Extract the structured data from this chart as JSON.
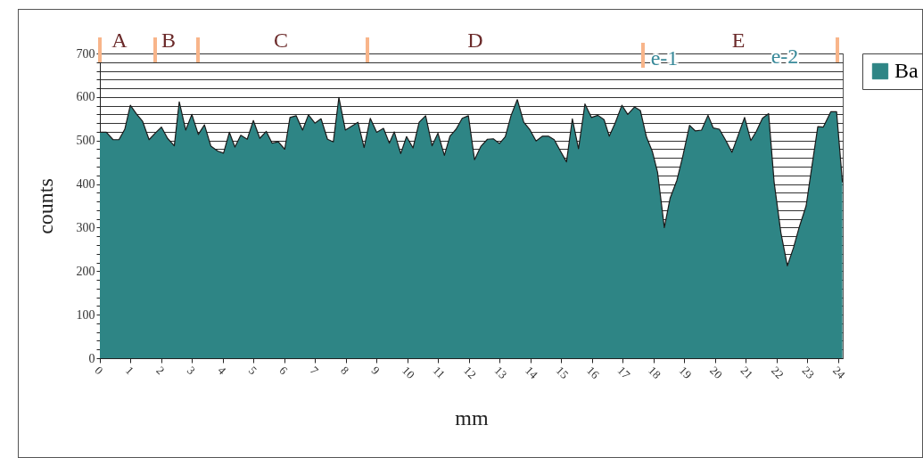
{
  "chart_data": {
    "type": "area",
    "xlabel": "mm",
    "ylabel": "counts",
    "series": [
      {
        "name": "Ba",
        "color": "#2e8585",
        "x": [
          0,
          0.21,
          0.43,
          0.62,
          0.81,
          0.99,
          1.2,
          1.39,
          1.6,
          1.8,
          2.0,
          2.2,
          2.42,
          2.58,
          2.79,
          2.99,
          3.2,
          3.4,
          3.61,
          3.83,
          4.02,
          4.21,
          4.39,
          4.58,
          4.79,
          4.99,
          5.2,
          5.41,
          5.6,
          5.8,
          6.01,
          6.18,
          6.38,
          6.59,
          6.78,
          6.99,
          7.19,
          7.4,
          7.59,
          7.77,
          7.98,
          8.39,
          8.59,
          8.79,
          9.0,
          9.22,
          9.41,
          9.57,
          9.78,
          9.97,
          10.18,
          10.38,
          10.59,
          10.8,
          10.99,
          11.2,
          11.38,
          11.58,
          11.78,
          11.98,
          12.18,
          12.39,
          12.6,
          12.79,
          12.99,
          13.18,
          13.37,
          13.57,
          13.78,
          13.97,
          14.18,
          14.39,
          14.58,
          14.77,
          14.98,
          15.17,
          15.36,
          15.56,
          15.77,
          15.98,
          16.19,
          16.39,
          16.56,
          16.75,
          16.97,
          17.16,
          17.38,
          17.57,
          17.77,
          17.96,
          18.13,
          18.35,
          18.54,
          18.76,
          18.96,
          19.17,
          19.36,
          19.56,
          19.77,
          19.94,
          20.14,
          20.35,
          20.55,
          20.76,
          20.96,
          21.16,
          21.34,
          21.54,
          21.74,
          21.92,
          22.14,
          22.35,
          22.55,
          22.74,
          22.96,
          23.15,
          23.34,
          23.52,
          23.76,
          23.95,
          24.14
        ],
        "values": [
          519,
          519,
          502,
          502,
          526,
          581,
          560,
          544,
          502,
          517,
          531,
          505,
          488,
          589,
          524,
          560,
          514,
          536,
          487,
          476,
          471,
          519,
          485,
          512,
          503,
          546,
          505,
          521,
          494,
          497,
          480,
          553,
          557,
          524,
          559,
          540,
          550,
          503,
          497,
          599,
          524,
          542,
          484,
          551,
          519,
          528,
          494,
          520,
          470,
          509,
          483,
          542,
          557,
          488,
          517,
          466,
          510,
          526,
          551,
          557,
          456,
          487,
          503,
          504,
          493,
          509,
          558,
          594,
          542,
          526,
          499,
          510,
          510,
          502,
          475,
          451,
          550,
          481,
          584,
          553,
          558,
          548,
          510,
          540,
          581,
          560,
          577,
          569,
          508,
          475,
          427,
          300,
          368,
          409,
          467,
          535,
          522,
          524,
          558,
          529,
          526,
          500,
          473,
          514,
          553,
          500,
          521,
          551,
          562,
          404,
          288,
          212,
          254,
          302,
          350,
          442,
          532,
          531,
          566,
          566,
          404
        ]
      }
    ],
    "xlim": [
      0,
      24.15
    ],
    "xticks": [
      0,
      1,
      2,
      3,
      4,
      5,
      6,
      7,
      8,
      9,
      10,
      11,
      12,
      13,
      14,
      15,
      16,
      17,
      18,
      19,
      20,
      21,
      22,
      23,
      24
    ],
    "ylim": [
      0,
      700
    ],
    "yticks": [
      0,
      {
        "value": 20,
        "label": null
      },
      {
        "value": 40,
        "label": null
      },
      {
        "value": 60,
        "label": null
      },
      {
        "value": 80,
        "label": null
      },
      100,
      {
        "value": 120,
        "label": null
      },
      {
        "value": 140,
        "label": null
      },
      {
        "value": 160,
        "label": null
      },
      {
        "value": 180,
        "label": null
      },
      200,
      {
        "value": 220,
        "label": null
      },
      {
        "value": 240,
        "label": null
      },
      {
        "value": 260,
        "label": null
      },
      {
        "value": 280,
        "label": null
      },
      300,
      {
        "value": 320,
        "label": null
      },
      {
        "value": 340,
        "label": null
      },
      {
        "value": 360,
        "label": null
      },
      {
        "value": 380,
        "label": null
      },
      400,
      {
        "value": 420,
        "label": null
      },
      {
        "value": 440,
        "label": null
      },
      {
        "value": 460,
        "label": null
      },
      {
        "value": 480,
        "label": null
      },
      500,
      {
        "value": 520,
        "label": null
      },
      {
        "value": 540,
        "label": null
      },
      {
        "value": 560,
        "label": null
      },
      {
        "value": 580,
        "label": null
      },
      600,
      {
        "value": 620,
        "label": null
      },
      {
        "value": 640,
        "label": null
      },
      {
        "value": 660,
        "label": null
      },
      {
        "value": 680,
        "label": null
      },
      700
    ],
    "grid": "y",
    "legend": "right",
    "annotations": [
      "A",
      "B",
      "C",
      "D",
      "e-1",
      "E",
      "e-2"
    ]
  }
}
